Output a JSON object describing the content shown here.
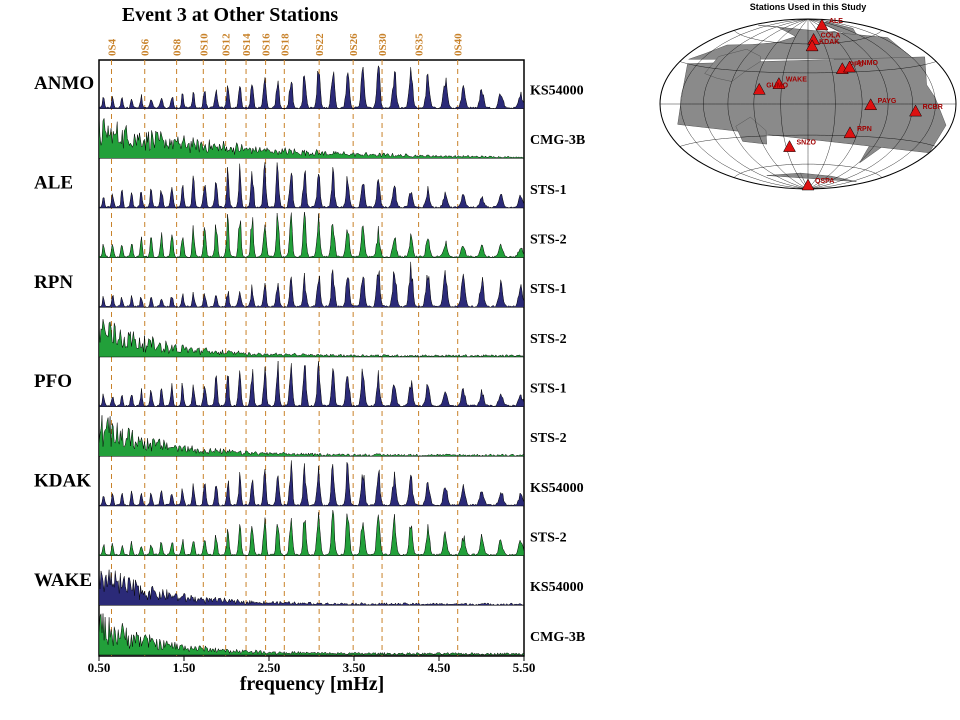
{
  "chart_data": {
    "type": "area",
    "title": "Event 3 at Other Stations",
    "xlabel": "frequency [mHz]",
    "ylabel": "",
    "xlim": [
      0.5,
      5.5
    ],
    "x_ticks": [
      0.5,
      1.5,
      2.5,
      3.5,
      4.5,
      5.5
    ],
    "x_tick_labels": [
      "0.50",
      "1.50",
      "2.50",
      "3.50",
      "4.50",
      "5.50"
    ],
    "mode_lines": [
      {
        "label": "0S4",
        "freq": 0.647
      },
      {
        "label": "0S6",
        "freq": 1.038
      },
      {
        "label": "0S8",
        "freq": 1.413
      },
      {
        "label": "0S10",
        "freq": 1.727
      },
      {
        "label": "0S12",
        "freq": 1.99
      },
      {
        "label": "0S14",
        "freq": 2.23
      },
      {
        "label": "0S16",
        "freq": 2.46
      },
      {
        "label": "0S18",
        "freq": 2.68
      },
      {
        "label": "0S22",
        "freq": 3.09
      },
      {
        "label": "0S26",
        "freq": 3.49
      },
      {
        "label": "0S30",
        "freq": 3.83
      },
      {
        "label": "0S35",
        "freq": 4.26
      },
      {
        "label": "0S40",
        "freq": 4.72
      }
    ],
    "stations": [
      {
        "station": "ANMO",
        "traces": [
          {
            "instrument": "KS54000",
            "color": "#2b2a78",
            "profile": "clean",
            "peak_freq": 3.49
          },
          {
            "instrument": "CMG-3B",
            "color": "#22a03a",
            "profile": "lowfreq",
            "peak_freq": 0.9
          }
        ]
      },
      {
        "station": "ALE",
        "traces": [
          {
            "instrument": "STS-1",
            "color": "#2b2a78",
            "profile": "clean",
            "peak_freq": 2.6
          },
          {
            "instrument": "STS-2",
            "color": "#22a03a",
            "profile": "clean",
            "peak_freq": 2.6
          }
        ]
      },
      {
        "station": "RPN",
        "traces": [
          {
            "instrument": "STS-1",
            "color": "#2b2a78",
            "profile": "clean",
            "peak_freq": 3.9
          },
          {
            "instrument": "STS-2",
            "color": "#22a03a",
            "profile": "noisy",
            "peak_freq": 0.75
          }
        ]
      },
      {
        "station": "PFO",
        "traces": [
          {
            "instrument": "STS-1",
            "color": "#2b2a78",
            "profile": "clean",
            "peak_freq": 2.9
          },
          {
            "instrument": "STS-2",
            "color": "#22a03a",
            "profile": "noisy",
            "peak_freq": 0.8
          }
        ]
      },
      {
        "station": "KDAK",
        "traces": [
          {
            "instrument": "KS54000",
            "color": "#2b2a78",
            "profile": "clean",
            "peak_freq": 3.2
          },
          {
            "instrument": "STS-2",
            "color": "#22a03a",
            "profile": "clean",
            "peak_freq": 3.3
          }
        ]
      },
      {
        "station": "WAKE",
        "traces": [
          {
            "instrument": "KS54000",
            "color": "#2b2a78",
            "profile": "noisy",
            "peak_freq": 0.8
          },
          {
            "instrument": "CMG-3B",
            "color": "#22a03a",
            "profile": "noisy",
            "peak_freq": 0.6
          }
        ]
      }
    ]
  },
  "map": {
    "title": "Stations Used in this Study",
    "land_color": "#8a8a8a",
    "marker_color": "#dd1111",
    "stations": [
      {
        "name": "ALE",
        "lon": -62.4,
        "lat": 82.5
      },
      {
        "name": "COLA",
        "lon": -147.8,
        "lat": 64.9
      },
      {
        "name": "KDAK",
        "lon": -152.6,
        "lat": 57.8
      },
      {
        "name": "PFO",
        "lon": -116.5,
        "lat": 33.6
      },
      {
        "name": "ANMO",
        "lon": -106.5,
        "lat": 34.9
      },
      {
        "name": "WAKE",
        "lon": 166.6,
        "lat": 19.3
      },
      {
        "name": "GUMO",
        "lon": 144.9,
        "lat": 13.6
      },
      {
        "name": "PAYG",
        "lon": -90.3,
        "lat": -0.7
      },
      {
        "name": "RCBR",
        "lon": -35.7,
        "lat": -5.8
      },
      {
        "name": "SNZO",
        "lon": 174.7,
        "lat": -41.3
      },
      {
        "name": "RPN",
        "lon": -109.3,
        "lat": -27.1
      },
      {
        "name": "QSPA",
        "lon": 0.0,
        "lat": -90.0
      }
    ]
  }
}
